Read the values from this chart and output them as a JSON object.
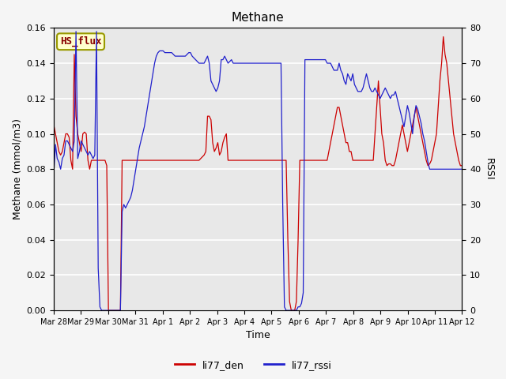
{
  "title": "Methane",
  "xlabel": "Time",
  "ylabel_left": "Methane (mmol/m3)",
  "ylabel_right": "RSSI",
  "ylim_left": [
    0,
    0.16
  ],
  "ylim_right": [
    0,
    80
  ],
  "annotation_text": "HS_flux",
  "annotation_facecolor": "#ffffcc",
  "annotation_edgecolor": "#999900",
  "annotation_textcolor": "#880000",
  "plot_bg_color": "#e8e8e8",
  "fig_bg_color": "#f5f5f5",
  "legend_labels": [
    "li77_den",
    "li77_rssi"
  ],
  "red_color": "#cc0000",
  "blue_color": "#2020cc",
  "linewidth": 0.9,
  "x_tick_labels": [
    "Mar 28",
    "Mar 29",
    "Mar 30",
    "Mar 31",
    "Apr 1",
    "Apr 2",
    "Apr 3",
    "Apr 4",
    "Apr 5",
    "Apr 6",
    "Apr 7",
    "Apr 8",
    "Apr 9",
    "Apr 10",
    "Apr 11",
    "Apr 12"
  ],
  "red_data": [
    0.105,
    0.1,
    0.095,
    0.09,
    0.088,
    0.09,
    0.095,
    0.1,
    0.1,
    0.098,
    0.085,
    0.08,
    0.145,
    0.11,
    0.1,
    0.095,
    0.09,
    0.1,
    0.101,
    0.1,
    0.085,
    0.08,
    0.085,
    0.085,
    0.085,
    0.085,
    0.085,
    0.085,
    0.085,
    0.085,
    0.085,
    0.082,
    0.0,
    0.0,
    0.0,
    0.0,
    0.0,
    0.0,
    0.0,
    0.0,
    0.085,
    0.085,
    0.085,
    0.085,
    0.085,
    0.085,
    0.085,
    0.085,
    0.085,
    0.085,
    0.085,
    0.085,
    0.085,
    0.085,
    0.085,
    0.085,
    0.085,
    0.085,
    0.085,
    0.085,
    0.085,
    0.085,
    0.085,
    0.085,
    0.085,
    0.085,
    0.085,
    0.085,
    0.085,
    0.085,
    0.085,
    0.085,
    0.085,
    0.085,
    0.085,
    0.085,
    0.085,
    0.085,
    0.085,
    0.085,
    0.085,
    0.085,
    0.085,
    0.085,
    0.085,
    0.085,
    0.086,
    0.087,
    0.088,
    0.09,
    0.11,
    0.11,
    0.108,
    0.095,
    0.09,
    0.092,
    0.095,
    0.088,
    0.09,
    0.095,
    0.098,
    0.1,
    0.085,
    0.085,
    0.085,
    0.085,
    0.085,
    0.085,
    0.085,
    0.085,
    0.085,
    0.085,
    0.085,
    0.085,
    0.085,
    0.085,
    0.085,
    0.085,
    0.085,
    0.085,
    0.085,
    0.085,
    0.085,
    0.085,
    0.085,
    0.085,
    0.085,
    0.085,
    0.085,
    0.085,
    0.085,
    0.085,
    0.085,
    0.085,
    0.085,
    0.085,
    0.085,
    0.04,
    0.005,
    0.0,
    0.0,
    0.0,
    0.005,
    0.04,
    0.085,
    0.085,
    0.085,
    0.085,
    0.085,
    0.085,
    0.085,
    0.085,
    0.085,
    0.085,
    0.085,
    0.085,
    0.085,
    0.085,
    0.085,
    0.085,
    0.085,
    0.09,
    0.095,
    0.1,
    0.105,
    0.11,
    0.115,
    0.115,
    0.11,
    0.105,
    0.1,
    0.095,
    0.095,
    0.09,
    0.09,
    0.085,
    0.085,
    0.085,
    0.085,
    0.085,
    0.085,
    0.085,
    0.085,
    0.085,
    0.085,
    0.085,
    0.085,
    0.085,
    0.1,
    0.115,
    0.13,
    0.115,
    0.1,
    0.095,
    0.085,
    0.082,
    0.083,
    0.083,
    0.082,
    0.082,
    0.085,
    0.09,
    0.095,
    0.1,
    0.105,
    0.1,
    0.095,
    0.09,
    0.095,
    0.1,
    0.105,
    0.11,
    0.115,
    0.11,
    0.105,
    0.1,
    0.095,
    0.09,
    0.085,
    0.082,
    0.083,
    0.085,
    0.09,
    0.095,
    0.1,
    0.115,
    0.13,
    0.14,
    0.155,
    0.145,
    0.14,
    0.13,
    0.12,
    0.11,
    0.1,
    0.095,
    0.09,
    0.085,
    0.082,
    0.082
  ],
  "blue_data": [
    39.0,
    47.0,
    43.0,
    42.0,
    40.0,
    43.0,
    44.0,
    48.0,
    48.0,
    47.0,
    46.0,
    45.0,
    48.0,
    79.0,
    43.0,
    45.0,
    48.0,
    47.0,
    46.0,
    45.0,
    44.0,
    45.0,
    44.0,
    43.0,
    44.0,
    79.0,
    12.0,
    1.0,
    0.0,
    0.0,
    0.0,
    0.0,
    0.0,
    0.0,
    0.0,
    0.0,
    0.0,
    0.0,
    0.0,
    0.0,
    28.0,
    30.0,
    29.0,
    30.0,
    31.0,
    32.0,
    34.0,
    37.0,
    40.0,
    43.0,
    46.0,
    48.0,
    50.0,
    52.0,
    55.0,
    58.0,
    61.0,
    64.0,
    67.0,
    70.0,
    72.0,
    73.0,
    73.5,
    73.5,
    73.5,
    73.0,
    73.0,
    73.0,
    73.0,
    73.0,
    72.5,
    72.0,
    72.0,
    72.0,
    72.0,
    72.0,
    72.0,
    72.0,
    72.5,
    73.0,
    73.0,
    72.0,
    71.5,
    71.0,
    70.5,
    70.0,
    70.0,
    70.0,
    70.0,
    71.0,
    72.0,
    70.0,
    65.0,
    64.0,
    63.0,
    62.0,
    63.0,
    65.0,
    71.0,
    71.0,
    72.0,
    71.0,
    70.0,
    70.5,
    71.0,
    70.0,
    70.0,
    70.0,
    70.0,
    70.0,
    70.0,
    70.0,
    70.0,
    70.0,
    70.0,
    70.0,
    70.0,
    70.0,
    70.0,
    70.0,
    70.0,
    70.0,
    70.0,
    70.0,
    70.0,
    70.0,
    70.0,
    70.0,
    70.0,
    70.0,
    70.0,
    70.0,
    70.0,
    70.0,
    30.0,
    1.0,
    0.0,
    0.0,
    0.0,
    0.0,
    0.0,
    0.0,
    0.0,
    1.0,
    1.0,
    2.0,
    5.0,
    71.0,
    71.0,
    71.0,
    71.0,
    71.0,
    71.0,
    71.0,
    71.0,
    71.0,
    71.0,
    71.0,
    71.0,
    71.0,
    70.0,
    70.0,
    70.0,
    69.0,
    68.0,
    68.0,
    68.0,
    70.0,
    68.0,
    67.0,
    65.0,
    64.0,
    67.0,
    66.0,
    65.0,
    67.0,
    64.0,
    63.0,
    62.0,
    62.0,
    62.0,
    63.0,
    65.0,
    67.0,
    65.0,
    63.0,
    62.0,
    62.0,
    63.0,
    62.0,
    61.0,
    60.0,
    61.0,
    62.0,
    63.0,
    62.0,
    61.0,
    60.0,
    61.0,
    61.0,
    62.0,
    60.0,
    58.0,
    56.0,
    54.0,
    52.0,
    55.0,
    58.0,
    56.0,
    53.0,
    50.0,
    55.0,
    58.0,
    57.0,
    55.0,
    53.0,
    50.0,
    48.0,
    45.0,
    42.0,
    40.0,
    40.0,
    40.0,
    40.0,
    40.0,
    40.0,
    40.0,
    40.0,
    40.0,
    40.0,
    40.0,
    40.0,
    40.0,
    40.0,
    40.0,
    40.0,
    40.0,
    40.0,
    40.0,
    40.0
  ]
}
